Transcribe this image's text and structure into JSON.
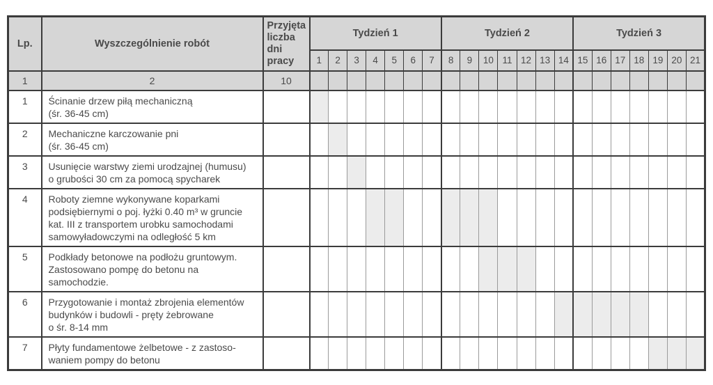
{
  "colors": {
    "header_bg": "#d6d6d6",
    "gantt_fill": "#ececec",
    "border_strong": "#3b3b3b",
    "border_light": "#9a9a9a",
    "text": "#4a4a4a",
    "page_bg": "#ffffff"
  },
  "table": {
    "header": {
      "lp": "Lp.",
      "works": "Wyszczególnienie robót",
      "accepted_days": "Przyjęta liczba dni pracy"
    },
    "weeks": [
      {
        "label": "Tydzień 1",
        "days": [
          1,
          2,
          3,
          4,
          5,
          6,
          7
        ]
      },
      {
        "label": "Tydzień 2",
        "days": [
          8,
          9,
          10,
          11,
          12,
          13,
          14
        ]
      },
      {
        "label": "Tydzień 3",
        "days": [
          15,
          16,
          17,
          18,
          19,
          20,
          21
        ]
      }
    ],
    "numbering_row": {
      "lp": "1",
      "works": "2",
      "accepted_days": "10"
    },
    "rows": [
      {
        "lp": "1",
        "lines": 2,
        "description": "Ścinanie drzew piłą mechaniczną\n(śr. 36-45 cm)",
        "accepted_days": "",
        "shaded_days": [
          1
        ]
      },
      {
        "lp": "2",
        "lines": 2,
        "description": "Mechaniczne karczowanie pni\n(śr. 36-45 cm)",
        "accepted_days": "",
        "shaded_days": [
          2
        ]
      },
      {
        "lp": "3",
        "lines": 2,
        "description": "Usunięcie warstwy ziemi urodzajnej (humusu)\no grubości 30 cm za pomocą spycharek",
        "accepted_days": "",
        "shaded_days": [
          3
        ]
      },
      {
        "lp": "4",
        "lines": 4,
        "description": "Roboty ziemne wykonywane koparkami\npodsiębiernymi o poj. łyżki 0.40 m³ w gruncie\nkat. III z transportem urobku samochodami\nsamowyładowczymi na odległość 5 km",
        "accepted_days": "",
        "shaded_days": [
          4,
          5,
          8,
          9,
          10
        ]
      },
      {
        "lp": "5",
        "lines": 3,
        "description": "Podkłady betonowe na podłożu gruntowym.\nZastosowano pompę do betonu na\nsamochodzie.",
        "accepted_days": "",
        "shaded_days": [
          10,
          11,
          12
        ]
      },
      {
        "lp": "6",
        "lines": 3,
        "description": "Przygotowanie i montaż zbrojenia elementów\nbudynków i budowli - pręty żebrowane\no śr. 8-14 mm",
        "accepted_days": "",
        "shaded_days": [
          14,
          15,
          16,
          17,
          18
        ]
      },
      {
        "lp": "7",
        "lines": 2,
        "description": "Płyty fundamentowe żelbetowe - z zastoso-\nwaniem pompy do betonu",
        "accepted_days": "",
        "shaded_days": [
          19,
          20,
          21
        ]
      }
    ]
  },
  "chart_data": {
    "type": "gantt",
    "title": "",
    "x_axis": {
      "unit": "dzień",
      "range": [
        1,
        21
      ],
      "groups": [
        "Tydzień 1",
        "Tydzień 2",
        "Tydzień 3"
      ],
      "days_per_group": 7
    },
    "accepted_work_days_header_value": "10",
    "tasks": [
      {
        "lp": 1,
        "name": "Ścinanie drzew piłą mechaniczną (śr. 36-45 cm)",
        "active_days": [
          1
        ]
      },
      {
        "lp": 2,
        "name": "Mechaniczne karczowanie pni (śr. 36-45 cm)",
        "active_days": [
          2
        ]
      },
      {
        "lp": 3,
        "name": "Usunięcie warstwy ziemi urodzajnej (humusu) o grubości 30 cm za pomocą spycharek",
        "active_days": [
          3
        ]
      },
      {
        "lp": 4,
        "name": "Roboty ziemne wykonywane koparkami podsiębiernymi o poj. łyżki 0.40 m³ w gruncie kat. III z transportem urobku samochodami samowyładowczymi na odległość 5 km",
        "active_days": [
          4,
          5,
          8,
          9,
          10
        ]
      },
      {
        "lp": 5,
        "name": "Podkłady betonowe na podłożu gruntowym. Zastosowano pompę do betonu na samochodzie.",
        "active_days": [
          10,
          11,
          12
        ]
      },
      {
        "lp": 6,
        "name": "Przygotowanie i montaż zbrojenia elementów budynków i budowli - pręty żebrowane o śr. 8-14 mm",
        "active_days": [
          14,
          15,
          16,
          17,
          18
        ]
      },
      {
        "lp": 7,
        "name": "Płyty fundamentowe żelbetowe - z zastosowaniem pompy do betonu",
        "active_days": [
          19,
          20,
          21
        ]
      }
    ]
  }
}
